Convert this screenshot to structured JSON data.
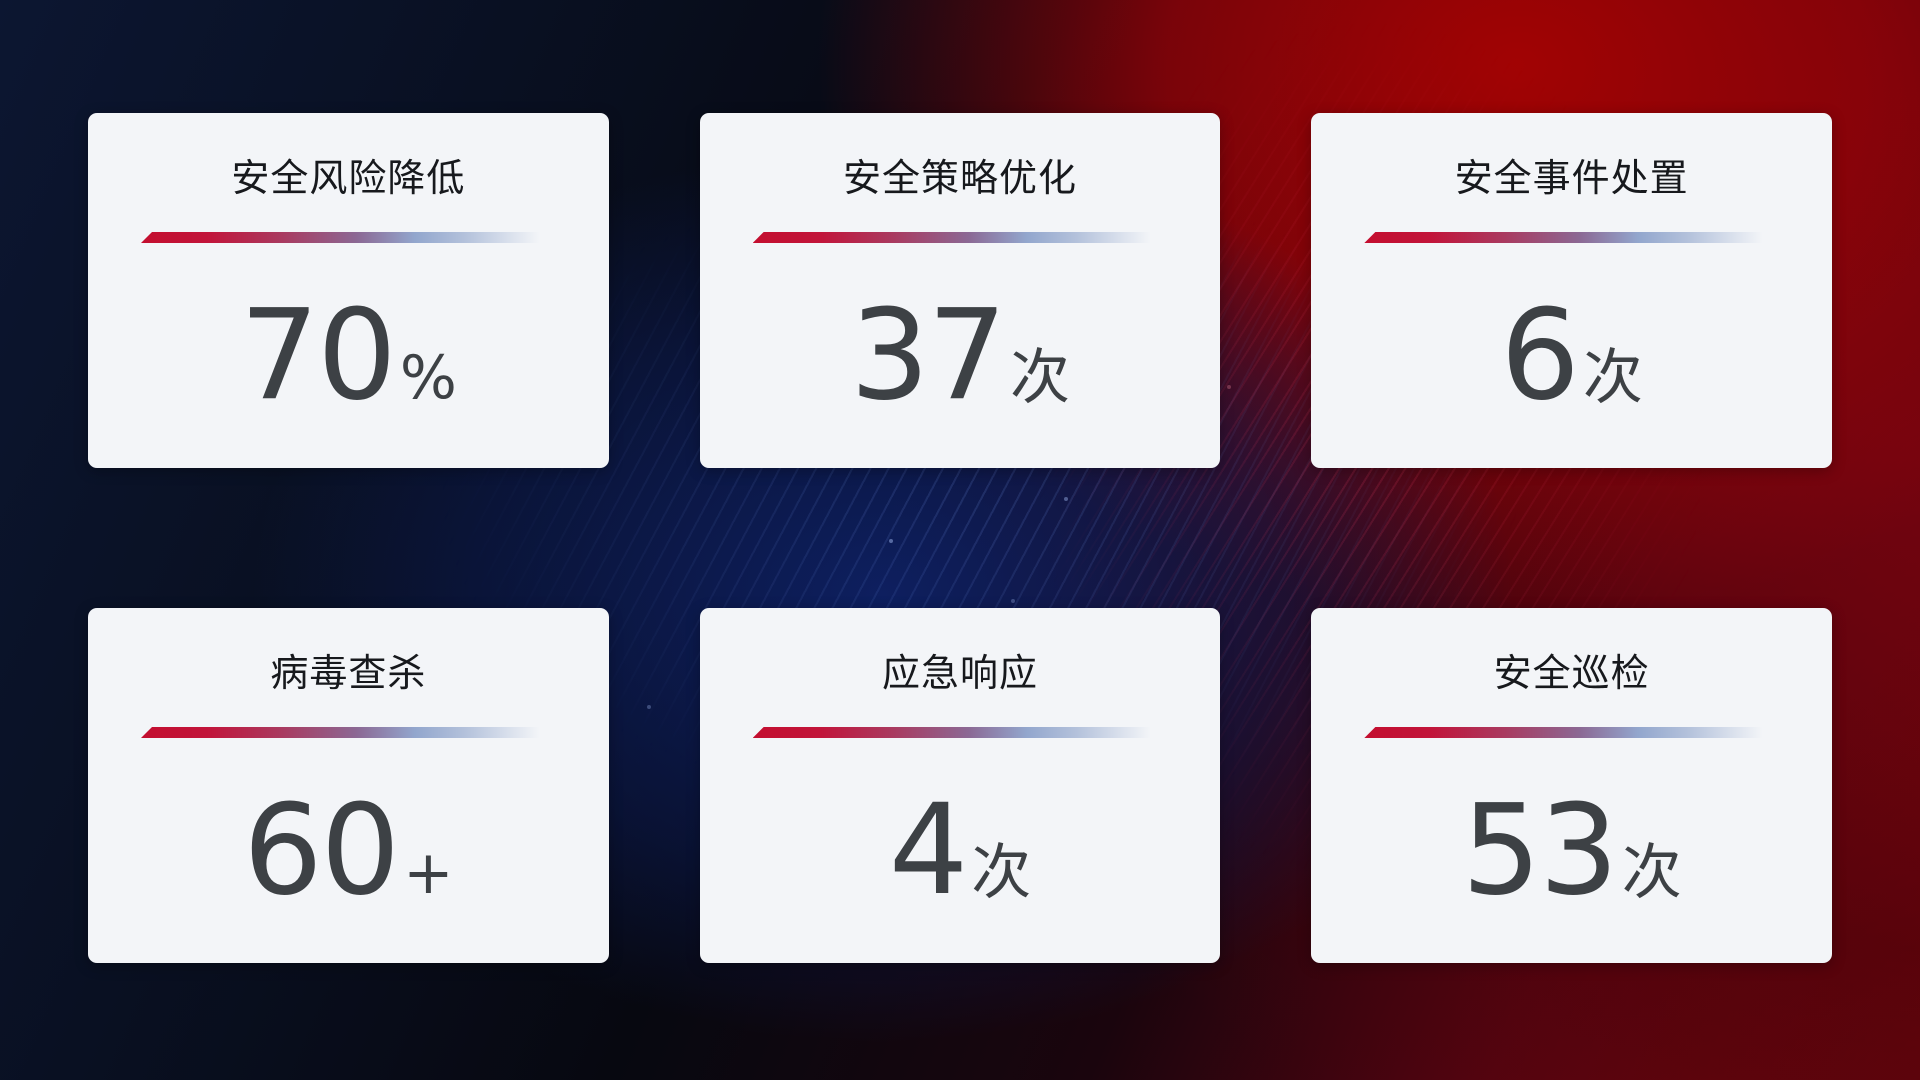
{
  "colors": {
    "background_navy": "#0c1631",
    "background_red": "#a30303",
    "blue_glow": "#0e2166",
    "card_background": "#f3f5f8",
    "title_text": "#17191d",
    "value_text": "#3d4145",
    "line_red": "#c30e2f",
    "line_blue": "#a9b9d6"
  },
  "cards": [
    {
      "title": "安全风险降低",
      "value": "70",
      "unit": "%"
    },
    {
      "title": "安全策略优化",
      "value": "37",
      "unit": "次"
    },
    {
      "title": "安全事件处置",
      "value": "6",
      "unit": "次"
    },
    {
      "title": "病毒查杀",
      "value": "60",
      "unit": "+"
    },
    {
      "title": "应急响应",
      "value": "4",
      "unit": "次"
    },
    {
      "title": "安全巡检",
      "value": "53",
      "unit": "次"
    }
  ]
}
